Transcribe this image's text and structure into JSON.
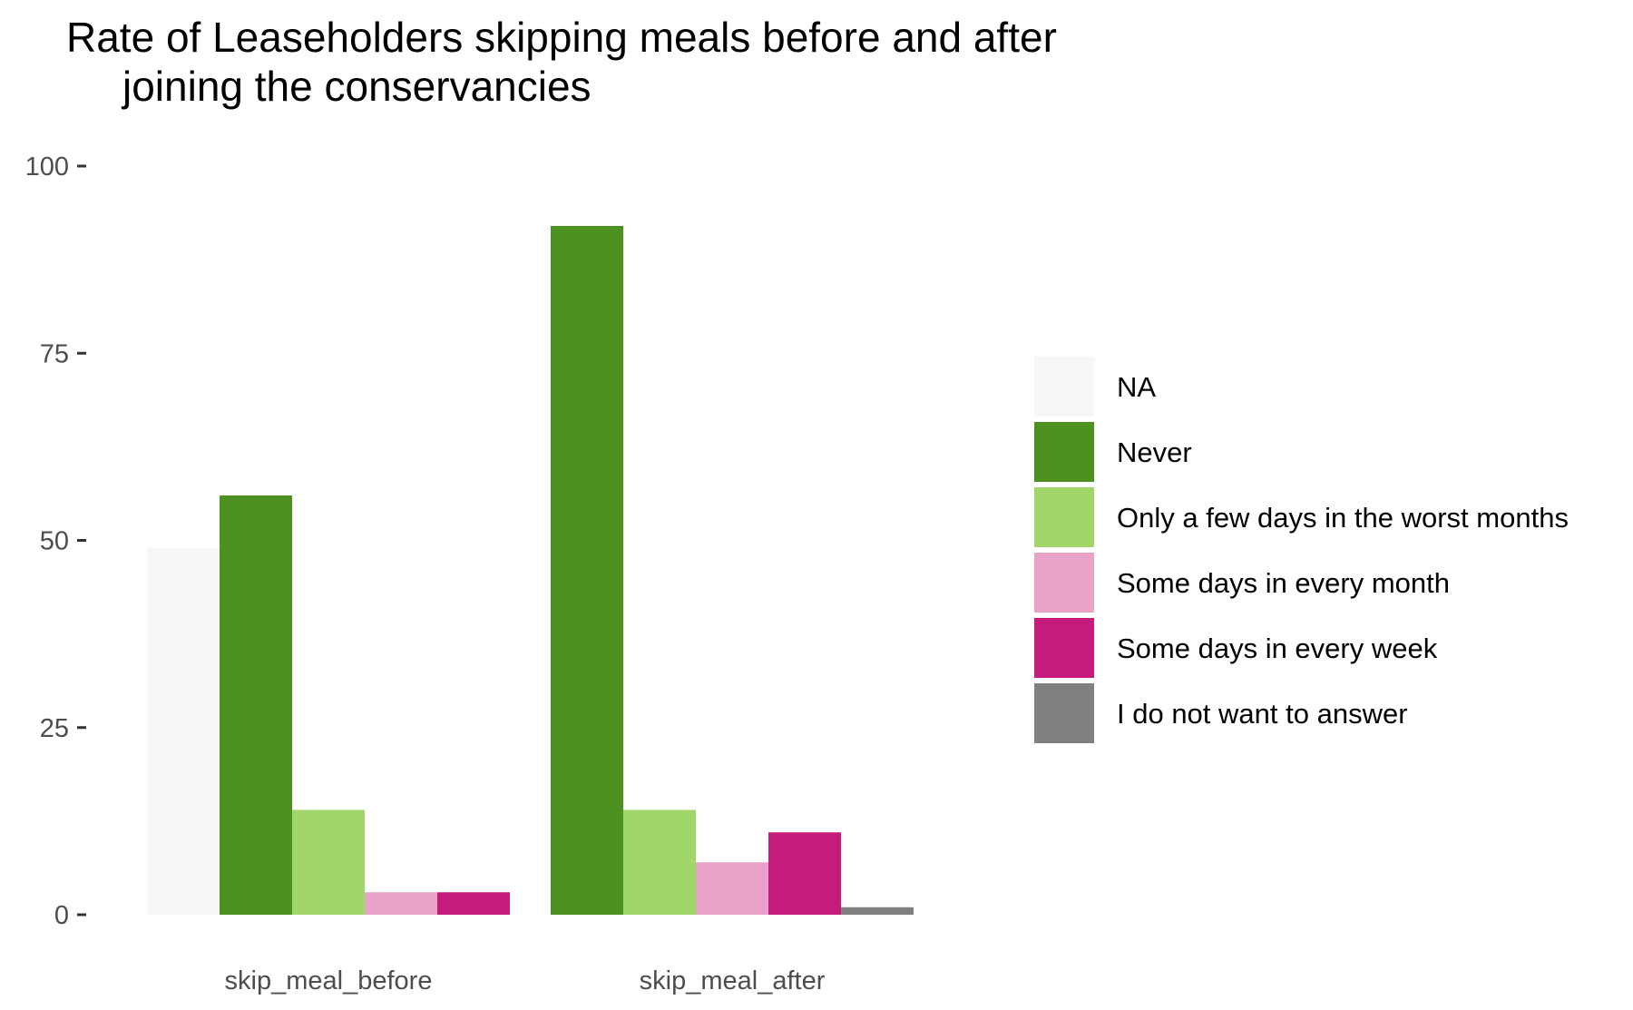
{
  "chart_data": {
    "type": "bar",
    "title": "Rate of Leaseholders skipping meals before and after\njoining the conservancies",
    "xlabel": "",
    "ylabel": "",
    "ylim": [
      0,
      100
    ],
    "y_ticks": [
      0,
      25,
      50,
      75,
      100
    ],
    "grid": false,
    "legend_position": "right",
    "categories": [
      "skip_meal_before",
      "skip_meal_after"
    ],
    "series": [
      {
        "name": "NA",
        "color": "#f7f7f7",
        "values": [
          49,
          null
        ]
      },
      {
        "name": "Never",
        "color": "#4d9221",
        "values": [
          56,
          92
        ]
      },
      {
        "name": "Only a few days in the worst months",
        "color": "#a1d76a",
        "values": [
          14,
          14
        ]
      },
      {
        "name": "Some days in every month",
        "color": "#e9a3c9",
        "values": [
          3,
          7
        ]
      },
      {
        "name": "Some days in every week",
        "color": "#c51b7d",
        "values": [
          3,
          11
        ]
      },
      {
        "name": "I do not want to answer",
        "color": "#808080",
        "values": [
          null,
          1
        ]
      }
    ]
  }
}
